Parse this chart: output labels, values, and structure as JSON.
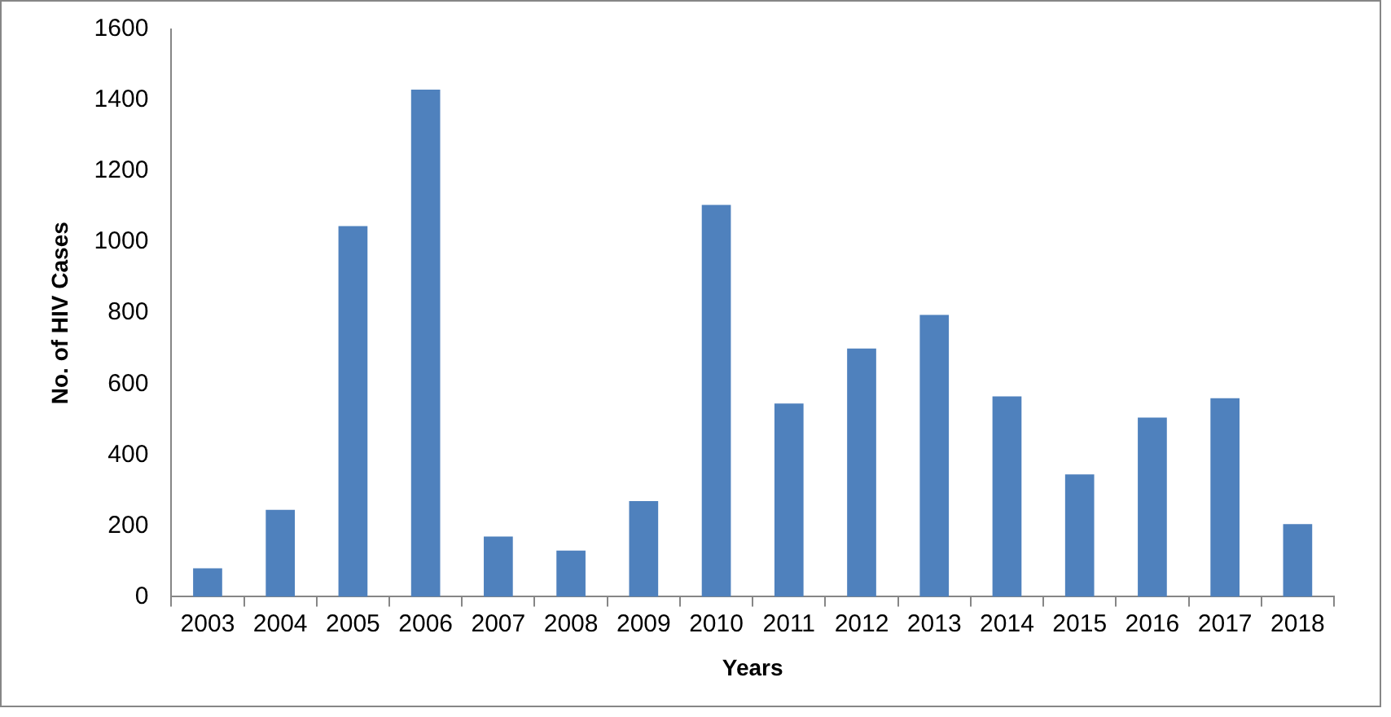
{
  "chart_data": {
    "type": "bar",
    "xlabel": "Years",
    "ylabel": "No. of HIV Cases",
    "categories": [
      "2003",
      "2004",
      "2005",
      "2006",
      "2007",
      "2008",
      "2009",
      "2010",
      "2011",
      "2012",
      "2013",
      "2014",
      "2015",
      "2016",
      "2017",
      "2018"
    ],
    "values": [
      80,
      245,
      1045,
      1430,
      170,
      130,
      270,
      1105,
      545,
      700,
      795,
      565,
      345,
      505,
      560,
      205
    ],
    "color": "#4f81bd",
    "ylim": [
      0,
      1600
    ],
    "yticks": [
      0,
      200,
      400,
      600,
      800,
      1000,
      1200,
      1400,
      1600
    ],
    "grid": false,
    "legend": false
  }
}
